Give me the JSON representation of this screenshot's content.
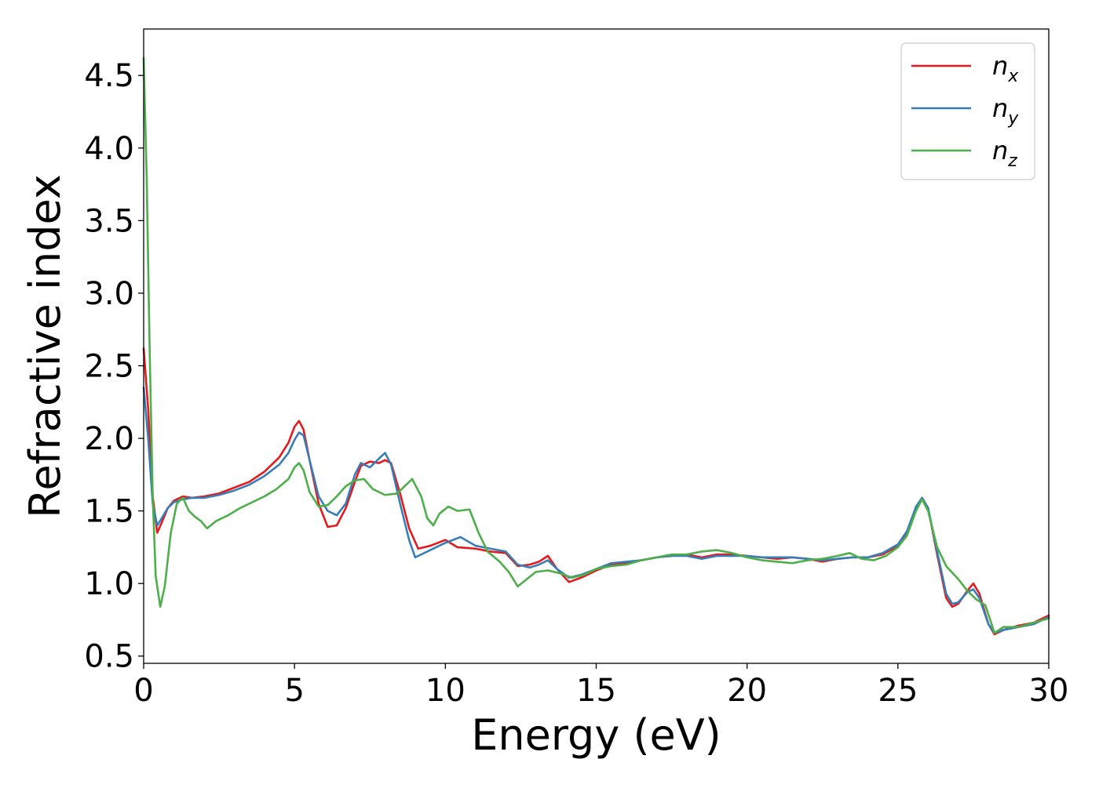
{
  "chart_data": {
    "type": "line",
    "title": "",
    "xlabel": "Energy (eV)",
    "ylabel": "Refractive index",
    "xlim": [
      0,
      30
    ],
    "ylim": [
      0.45,
      4.82
    ],
    "xticks": [
      0,
      5,
      10,
      15,
      20,
      25,
      30
    ],
    "xtick_labels": [
      "0",
      "5",
      "10",
      "15",
      "20",
      "25",
      "30"
    ],
    "yticks": [
      0.5,
      1.0,
      1.5,
      2.0,
      2.5,
      3.0,
      3.5,
      4.0,
      4.5
    ],
    "ytick_labels": [
      "0.5",
      "1.0",
      "1.5",
      "2.0",
      "2.5",
      "3.0",
      "3.5",
      "4.0",
      "4.5"
    ],
    "grid": false,
    "legend_position": "top-right",
    "series": [
      {
        "name": "n",
        "subscript": "x",
        "color": "#e41a1c",
        "points": [
          [
            0,
            2.62
          ],
          [
            0.15,
            2.2
          ],
          [
            0.3,
            1.6
          ],
          [
            0.45,
            1.35
          ],
          [
            0.6,
            1.42
          ],
          [
            0.8,
            1.52
          ],
          [
            1.0,
            1.57
          ],
          [
            1.3,
            1.6
          ],
          [
            1.6,
            1.59
          ],
          [
            2.0,
            1.6
          ],
          [
            2.5,
            1.62
          ],
          [
            3.0,
            1.66
          ],
          [
            3.5,
            1.7
          ],
          [
            4.0,
            1.77
          ],
          [
            4.5,
            1.87
          ],
          [
            4.8,
            1.97
          ],
          [
            5.0,
            2.08
          ],
          [
            5.15,
            2.12
          ],
          [
            5.3,
            2.06
          ],
          [
            5.5,
            1.85
          ],
          [
            5.8,
            1.55
          ],
          [
            6.1,
            1.39
          ],
          [
            6.4,
            1.4
          ],
          [
            6.7,
            1.52
          ],
          [
            7.0,
            1.7
          ],
          [
            7.2,
            1.81
          ],
          [
            7.5,
            1.84
          ],
          [
            7.8,
            1.83
          ],
          [
            8.0,
            1.85
          ],
          [
            8.2,
            1.83
          ],
          [
            8.5,
            1.62
          ],
          [
            8.8,
            1.38
          ],
          [
            9.1,
            1.24
          ],
          [
            9.5,
            1.26
          ],
          [
            10.0,
            1.3
          ],
          [
            10.4,
            1.25
          ],
          [
            11.0,
            1.24
          ],
          [
            11.5,
            1.22
          ],
          [
            12.0,
            1.21
          ],
          [
            12.4,
            1.12
          ],
          [
            12.8,
            1.13
          ],
          [
            13.1,
            1.15
          ],
          [
            13.4,
            1.19
          ],
          [
            13.7,
            1.1
          ],
          [
            14.1,
            1.01
          ],
          [
            14.5,
            1.04
          ],
          [
            15.0,
            1.09
          ],
          [
            15.5,
            1.13
          ],
          [
            16.0,
            1.14
          ],
          [
            16.5,
            1.16
          ],
          [
            17.0,
            1.18
          ],
          [
            17.5,
            1.19
          ],
          [
            18.0,
            1.2
          ],
          [
            18.5,
            1.18
          ],
          [
            19.0,
            1.2
          ],
          [
            19.5,
            1.2
          ],
          [
            20.0,
            1.19
          ],
          [
            20.5,
            1.18
          ],
          [
            21.0,
            1.17
          ],
          [
            21.5,
            1.18
          ],
          [
            22.0,
            1.17
          ],
          [
            22.5,
            1.15
          ],
          [
            23.0,
            1.17
          ],
          [
            23.5,
            1.18
          ],
          [
            24.0,
            1.18
          ],
          [
            24.5,
            1.2
          ],
          [
            25.0,
            1.26
          ],
          [
            25.3,
            1.35
          ],
          [
            25.6,
            1.52
          ],
          [
            25.8,
            1.59
          ],
          [
            26.0,
            1.52
          ],
          [
            26.3,
            1.2
          ],
          [
            26.6,
            0.9
          ],
          [
            26.8,
            0.84
          ],
          [
            27.0,
            0.86
          ],
          [
            27.3,
            0.95
          ],
          [
            27.5,
            1.0
          ],
          [
            27.7,
            0.93
          ],
          [
            28.0,
            0.72
          ],
          [
            28.2,
            0.65
          ],
          [
            28.5,
            0.68
          ],
          [
            29.0,
            0.71
          ],
          [
            29.5,
            0.73
          ],
          [
            30.0,
            0.78
          ]
        ]
      },
      {
        "name": "n",
        "subscript": "y",
        "color": "#377eb8",
        "points": [
          [
            0,
            2.35
          ],
          [
            0.15,
            2.0
          ],
          [
            0.3,
            1.55
          ],
          [
            0.45,
            1.4
          ],
          [
            0.6,
            1.45
          ],
          [
            0.8,
            1.52
          ],
          [
            1.0,
            1.56
          ],
          [
            1.3,
            1.58
          ],
          [
            1.6,
            1.59
          ],
          [
            2.0,
            1.59
          ],
          [
            2.5,
            1.61
          ],
          [
            3.0,
            1.64
          ],
          [
            3.5,
            1.68
          ],
          [
            4.0,
            1.74
          ],
          [
            4.5,
            1.82
          ],
          [
            4.8,
            1.9
          ],
          [
            5.0,
            1.99
          ],
          [
            5.15,
            2.04
          ],
          [
            5.3,
            2.02
          ],
          [
            5.5,
            1.85
          ],
          [
            5.8,
            1.6
          ],
          [
            6.1,
            1.5
          ],
          [
            6.4,
            1.47
          ],
          [
            6.7,
            1.55
          ],
          [
            7.0,
            1.75
          ],
          [
            7.2,
            1.83
          ],
          [
            7.5,
            1.8
          ],
          [
            7.8,
            1.86
          ],
          [
            8.0,
            1.9
          ],
          [
            8.2,
            1.82
          ],
          [
            8.5,
            1.55
          ],
          [
            8.8,
            1.3
          ],
          [
            9.0,
            1.18
          ],
          [
            9.5,
            1.23
          ],
          [
            10.0,
            1.28
          ],
          [
            10.5,
            1.32
          ],
          [
            11.0,
            1.26
          ],
          [
            11.5,
            1.24
          ],
          [
            12.0,
            1.22
          ],
          [
            12.4,
            1.13
          ],
          [
            12.8,
            1.11
          ],
          [
            13.1,
            1.13
          ],
          [
            13.4,
            1.16
          ],
          [
            13.7,
            1.1
          ],
          [
            14.1,
            1.04
          ],
          [
            14.5,
            1.06
          ],
          [
            15.0,
            1.1
          ],
          [
            15.5,
            1.14
          ],
          [
            16.0,
            1.15
          ],
          [
            16.5,
            1.16
          ],
          [
            17.0,
            1.18
          ],
          [
            17.5,
            1.19
          ],
          [
            18.0,
            1.19
          ],
          [
            18.5,
            1.17
          ],
          [
            19.0,
            1.19
          ],
          [
            19.5,
            1.19
          ],
          [
            20.0,
            1.19
          ],
          [
            20.5,
            1.18
          ],
          [
            21.0,
            1.18
          ],
          [
            21.5,
            1.18
          ],
          [
            22.0,
            1.17
          ],
          [
            22.5,
            1.16
          ],
          [
            23.0,
            1.17
          ],
          [
            23.5,
            1.18
          ],
          [
            24.0,
            1.18
          ],
          [
            24.5,
            1.21
          ],
          [
            25.0,
            1.27
          ],
          [
            25.3,
            1.36
          ],
          [
            25.6,
            1.53
          ],
          [
            25.8,
            1.59
          ],
          [
            26.0,
            1.52
          ],
          [
            26.3,
            1.22
          ],
          [
            26.6,
            0.93
          ],
          [
            26.8,
            0.86
          ],
          [
            27.0,
            0.87
          ],
          [
            27.3,
            0.94
          ],
          [
            27.5,
            0.96
          ],
          [
            27.7,
            0.9
          ],
          [
            28.0,
            0.72
          ],
          [
            28.2,
            0.66
          ],
          [
            28.5,
            0.68
          ],
          [
            29.0,
            0.7
          ],
          [
            29.5,
            0.72
          ],
          [
            30.0,
            0.77
          ]
        ]
      },
      {
        "name": "n",
        "subscript": "z",
        "color": "#4daf4a",
        "points": [
          [
            0,
            4.62
          ],
          [
            0.1,
            3.8
          ],
          [
            0.2,
            2.6
          ],
          [
            0.3,
            1.6
          ],
          [
            0.4,
            1.05
          ],
          [
            0.55,
            0.84
          ],
          [
            0.7,
            0.98
          ],
          [
            0.9,
            1.35
          ],
          [
            1.1,
            1.55
          ],
          [
            1.3,
            1.59
          ],
          [
            1.5,
            1.5
          ],
          [
            1.7,
            1.46
          ],
          [
            1.9,
            1.43
          ],
          [
            2.1,
            1.38
          ],
          [
            2.4,
            1.43
          ],
          [
            2.8,
            1.47
          ],
          [
            3.2,
            1.52
          ],
          [
            3.6,
            1.56
          ],
          [
            4.0,
            1.6
          ],
          [
            4.4,
            1.65
          ],
          [
            4.8,
            1.72
          ],
          [
            5.0,
            1.8
          ],
          [
            5.15,
            1.83
          ],
          [
            5.3,
            1.78
          ],
          [
            5.5,
            1.63
          ],
          [
            5.8,
            1.53
          ],
          [
            6.1,
            1.54
          ],
          [
            6.4,
            1.6
          ],
          [
            6.7,
            1.67
          ],
          [
            7.0,
            1.71
          ],
          [
            7.3,
            1.72
          ],
          [
            7.6,
            1.65
          ],
          [
            8.0,
            1.61
          ],
          [
            8.4,
            1.62
          ],
          [
            8.7,
            1.68
          ],
          [
            8.9,
            1.72
          ],
          [
            9.2,
            1.6
          ],
          [
            9.4,
            1.45
          ],
          [
            9.6,
            1.4
          ],
          [
            9.8,
            1.48
          ],
          [
            10.1,
            1.53
          ],
          [
            10.4,
            1.5
          ],
          [
            10.8,
            1.51
          ],
          [
            11.1,
            1.35
          ],
          [
            11.4,
            1.22
          ],
          [
            11.8,
            1.15
          ],
          [
            12.1,
            1.08
          ],
          [
            12.4,
            0.98
          ],
          [
            12.7,
            1.03
          ],
          [
            13.0,
            1.08
          ],
          [
            13.4,
            1.09
          ],
          [
            13.8,
            1.07
          ],
          [
            14.2,
            1.04
          ],
          [
            14.6,
            1.06
          ],
          [
            15.0,
            1.1
          ],
          [
            15.5,
            1.12
          ],
          [
            16.0,
            1.13
          ],
          [
            16.5,
            1.16
          ],
          [
            17.0,
            1.18
          ],
          [
            17.5,
            1.2
          ],
          [
            18.0,
            1.2
          ],
          [
            18.5,
            1.22
          ],
          [
            19.0,
            1.23
          ],
          [
            19.5,
            1.21
          ],
          [
            20.0,
            1.18
          ],
          [
            20.5,
            1.16
          ],
          [
            21.0,
            1.15
          ],
          [
            21.5,
            1.14
          ],
          [
            22.0,
            1.16
          ],
          [
            22.5,
            1.17
          ],
          [
            23.0,
            1.19
          ],
          [
            23.4,
            1.21
          ],
          [
            23.8,
            1.17
          ],
          [
            24.2,
            1.16
          ],
          [
            24.6,
            1.19
          ],
          [
            25.0,
            1.25
          ],
          [
            25.3,
            1.33
          ],
          [
            25.6,
            1.5
          ],
          [
            25.8,
            1.58
          ],
          [
            26.0,
            1.5
          ],
          [
            26.3,
            1.25
          ],
          [
            26.6,
            1.12
          ],
          [
            27.0,
            1.03
          ],
          [
            27.3,
            0.95
          ],
          [
            27.6,
            0.89
          ],
          [
            27.9,
            0.85
          ],
          [
            28.2,
            0.66
          ],
          [
            28.5,
            0.7
          ],
          [
            29.0,
            0.7
          ],
          [
            29.5,
            0.73
          ],
          [
            30.0,
            0.76
          ]
        ]
      }
    ]
  }
}
